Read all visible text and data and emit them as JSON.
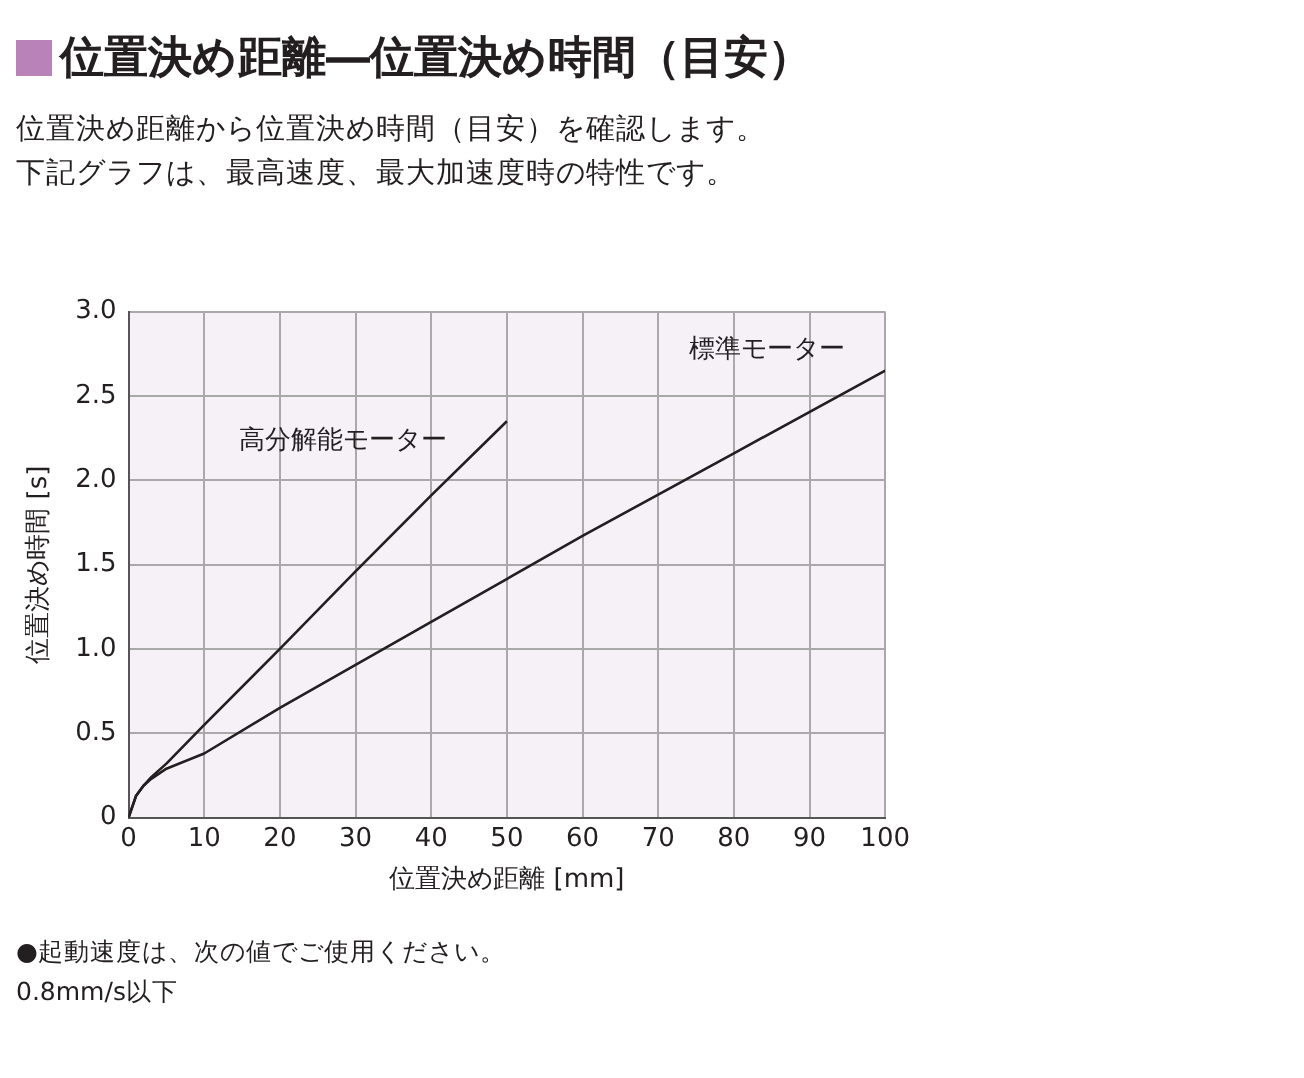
{
  "chart_data": {
    "type": "line",
    "title": "位置決め距離―位置決め時間（目安）",
    "subtitle": "位置決め距離から位置決め時間（目安）を確認します。下記グラフは、最高速度、最大加速度時の特性です。",
    "xlabel": "位置決め距離 [mm]",
    "ylabel": "位置決め時間 [s]",
    "series": [
      {
        "name": "高分解能モーター",
        "color": "#231f20",
        "x": [
          0,
          1,
          2,
          3,
          5,
          10,
          20,
          30,
          40,
          50
        ],
        "values": [
          0,
          0.13,
          0.19,
          0.24,
          0.32,
          0.55,
          1.0,
          1.46,
          1.91,
          2.35
        ]
      },
      {
        "name": "標準モーター",
        "color": "#231f20",
        "x": [
          0,
          1,
          2,
          3,
          5,
          10,
          20,
          40,
          60,
          80,
          100
        ],
        "values": [
          0,
          0.13,
          0.19,
          0.23,
          0.29,
          0.38,
          0.65,
          1.16,
          1.67,
          2.16,
          2.65
        ]
      }
    ],
    "xlim": [
      0,
      100
    ],
    "xticks": [
      0,
      10,
      20,
      30,
      40,
      50,
      60,
      70,
      80,
      90,
      100
    ],
    "ylim": [
      0,
      3
    ],
    "yticks": [
      {
        "value": 0,
        "label": "0"
      },
      {
        "value": 0.5,
        "label": "0.5"
      },
      {
        "value": 1,
        "label": "1.0"
      },
      {
        "value": 1.5,
        "label": "1.5"
      },
      {
        "value": 2,
        "label": "2.0"
      },
      {
        "value": 2.5,
        "label": "2.5"
      },
      {
        "value": 3,
        "label": "3.0"
      }
    ],
    "grid": true,
    "legend": false,
    "marker": "none",
    "line_style": "solid",
    "annotations": [
      "●起動速度は、次の値でご使用ください。",
      "0.8mm/s以下"
    ]
  }
}
